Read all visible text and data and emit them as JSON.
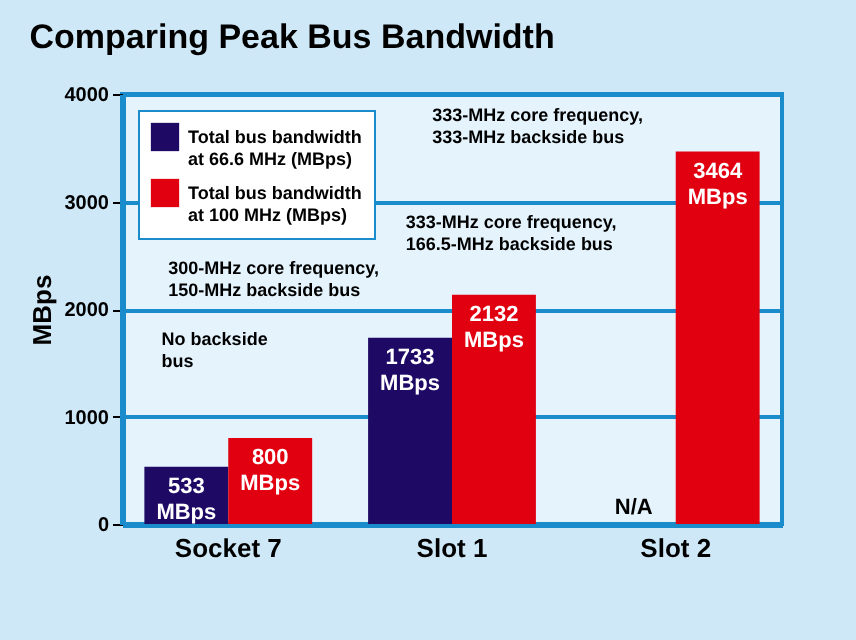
{
  "chart_data": {
    "type": "bar",
    "title": "Comparing Peak Bus Bandwidth",
    "ylabel": "MBps",
    "categories": [
      "Socket 7",
      "Slot 1",
      "Slot 2"
    ],
    "series": [
      {
        "name": "Total bus bandwidth at 66.6 MHz (MBps)",
        "color": "#1e0a64",
        "values": [
          533,
          1733,
          null
        ],
        "value_labels": [
          "533 MBps",
          "1733 MBps",
          "N/A"
        ]
      },
      {
        "name": "Total bus bandwidth at 100 MHz (MBps)",
        "color": "#e00010",
        "values": [
          800,
          2132,
          3464
        ],
        "value_labels": [
          "800 MBps",
          "2132 MBps",
          "3464 MBps"
        ]
      }
    ],
    "ylim": [
      0,
      4000
    ],
    "yticks": [
      0,
      1000,
      2000,
      3000,
      4000
    ],
    "grid": "y",
    "legend": "top left",
    "annotations": [
      "No backside bus",
      "300-MHz core frequency, 150-MHz backside bus",
      "333-MHz core frequency, 166.5-MHz backside bus",
      "333-MHz core frequency, 333-MHz backside bus"
    ]
  }
}
